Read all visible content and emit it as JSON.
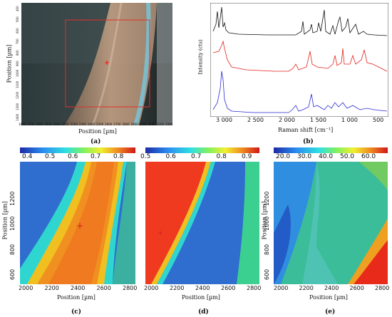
{
  "panel_a": {
    "caption": "(a)",
    "xlabel": "Position [µm]",
    "ylabel": "Position [µm]",
    "x_ticks": [
      "1600",
      "1700",
      "1800",
      "1900",
      "2000",
      "2100",
      "2200",
      "2300",
      "2400",
      "2500",
      "2600",
      "2700",
      "2800",
      "2900",
      "3000",
      "3100",
      "3200",
      "3300"
    ],
    "y_ticks": [
      "1400",
      "1300",
      "1200",
      "1100",
      "1000",
      "900",
      "800",
      "700",
      "600",
      "500",
      "400"
    ],
    "colors": {
      "dark": "#1d2a2a",
      "fiber": "#c09d82",
      "blue_edge": "#5fb7d8",
      "roi": "#e0302a"
    }
  },
  "panel_b": {
    "caption": "(b)",
    "xlabel": "Raman shift [cm⁻¹]",
    "ylabel": "Intensity (cts)",
    "x_ticks": [
      "3 000",
      "2 500",
      "2 000",
      "1 500",
      "1 000",
      "500"
    ],
    "colors": {
      "black": "#111111",
      "red": "#e0231d",
      "blue": "#2a2ad6"
    }
  },
  "panel_c": {
    "caption": "(c)",
    "colorbar_ticks": [
      "0.4",
      "0.5",
      "0.6",
      "0.7",
      "0.8"
    ],
    "xlabel": "Position [µm]",
    "ylabel": "Position [µm]",
    "x_ticks": [
      "2000",
      "2200",
      "2400",
      "2600",
      "2800"
    ],
    "y_ticks": [
      "1200",
      "1000",
      "800",
      "600"
    ]
  },
  "panel_d": {
    "caption": "(d)",
    "colorbar_ticks": [
      "0.5",
      "0.6",
      "0.7",
      "0.8",
      "0.9"
    ],
    "xlabel": "Position [µm]",
    "x_ticks": [
      "2000",
      "2200",
      "2400",
      "2600",
      "2800"
    ]
  },
  "panel_e": {
    "caption": "(e)",
    "colorbar_ticks": [
      "20.0",
      "30.0",
      "40.0",
      "50.0",
      "60.0"
    ],
    "xlabel": "Position [µm]",
    "ylabel": "Position [µm]",
    "x_ticks": [
      "2000",
      "2200",
      "2400",
      "2600",
      "2800"
    ],
    "y_ticks": [
      "1200",
      "1000",
      "800",
      "600"
    ]
  }
}
